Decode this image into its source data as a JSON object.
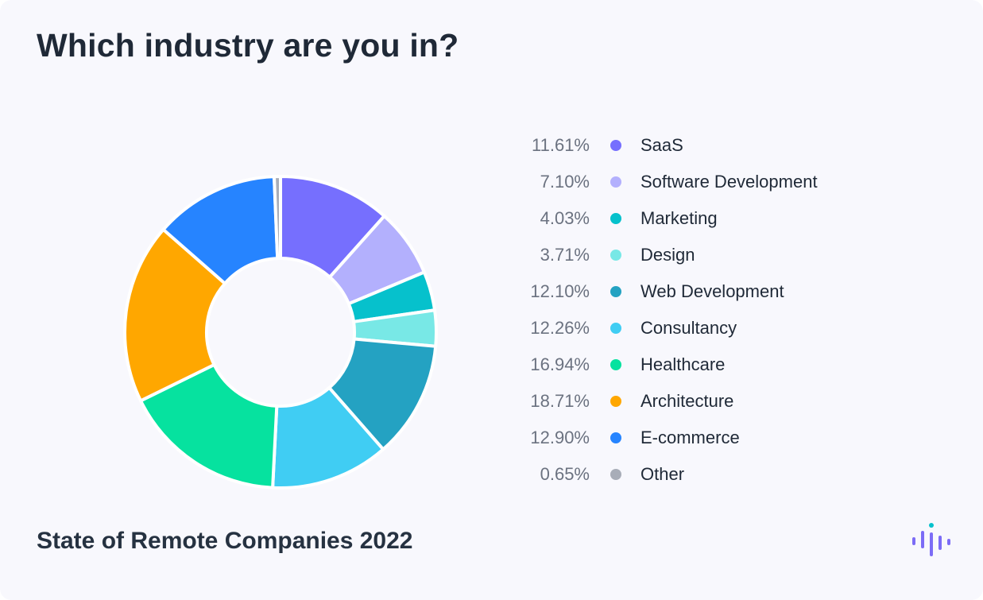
{
  "title": "Which industry are you in?",
  "footer": "State of Remote Companies 2022",
  "chart_data": {
    "type": "pie",
    "donut": true,
    "legend_position": "right",
    "categories": [
      "SaaS",
      "Software Development",
      "Marketing",
      "Design",
      "Web Development",
      "Consultancy",
      "Healthcare",
      "Architecture",
      "E-commerce",
      "Other"
    ],
    "values": [
      11.61,
      7.1,
      4.03,
      3.71,
      12.1,
      12.26,
      16.94,
      18.71,
      12.9,
      0.65
    ],
    "value_labels": [
      "11.61%",
      "7.10%",
      "4.03%",
      "3.71%",
      "12.10%",
      "12.26%",
      "16.94%",
      "18.71%",
      "12.90%",
      "0.65%"
    ],
    "colors": [
      "#766ffe",
      "#b3b0fd",
      "#06c1cc",
      "#78e8e6",
      "#24a2c2",
      "#40cdf3",
      "#06e29f",
      "#ffa700",
      "#2684ff",
      "#a8adb8"
    ]
  },
  "logo": {
    "icon": "audio-bars-logo-icon",
    "colors": [
      "#7c6cf6",
      "#06c1cc"
    ]
  }
}
